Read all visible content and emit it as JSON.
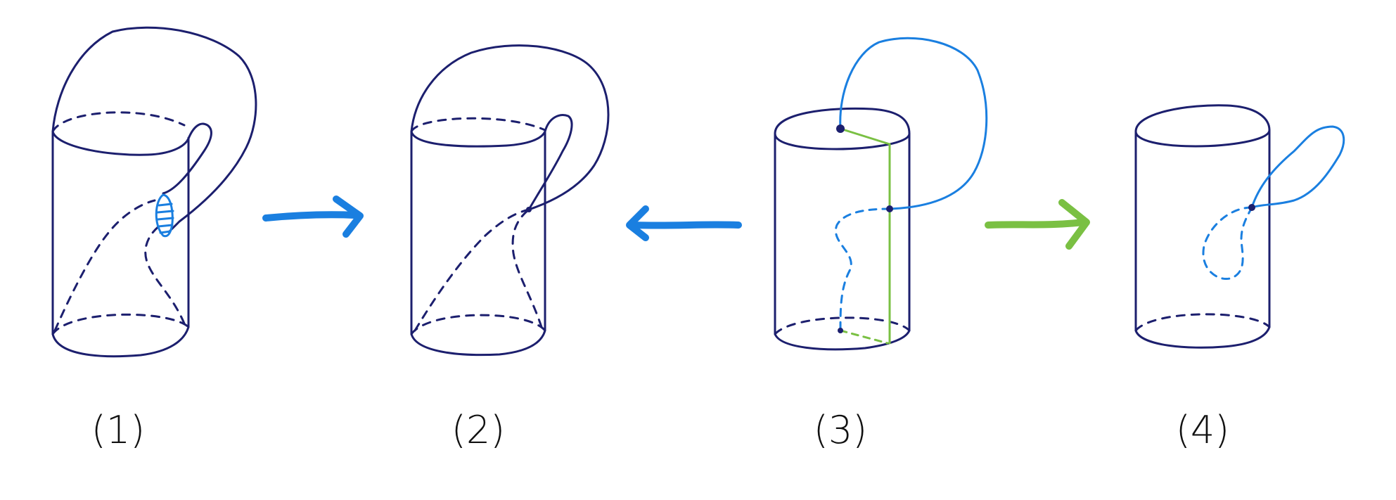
{
  "figure": {
    "panels": [
      {
        "label": "(1)"
      },
      {
        "label": "(2)"
      },
      {
        "label": "(3)"
      },
      {
        "label": "(4)"
      }
    ],
    "colors": {
      "outline": "#1c1f6e",
      "blue": "#1a7fe0",
      "green": "#7ac043",
      "label": "#111111"
    }
  }
}
